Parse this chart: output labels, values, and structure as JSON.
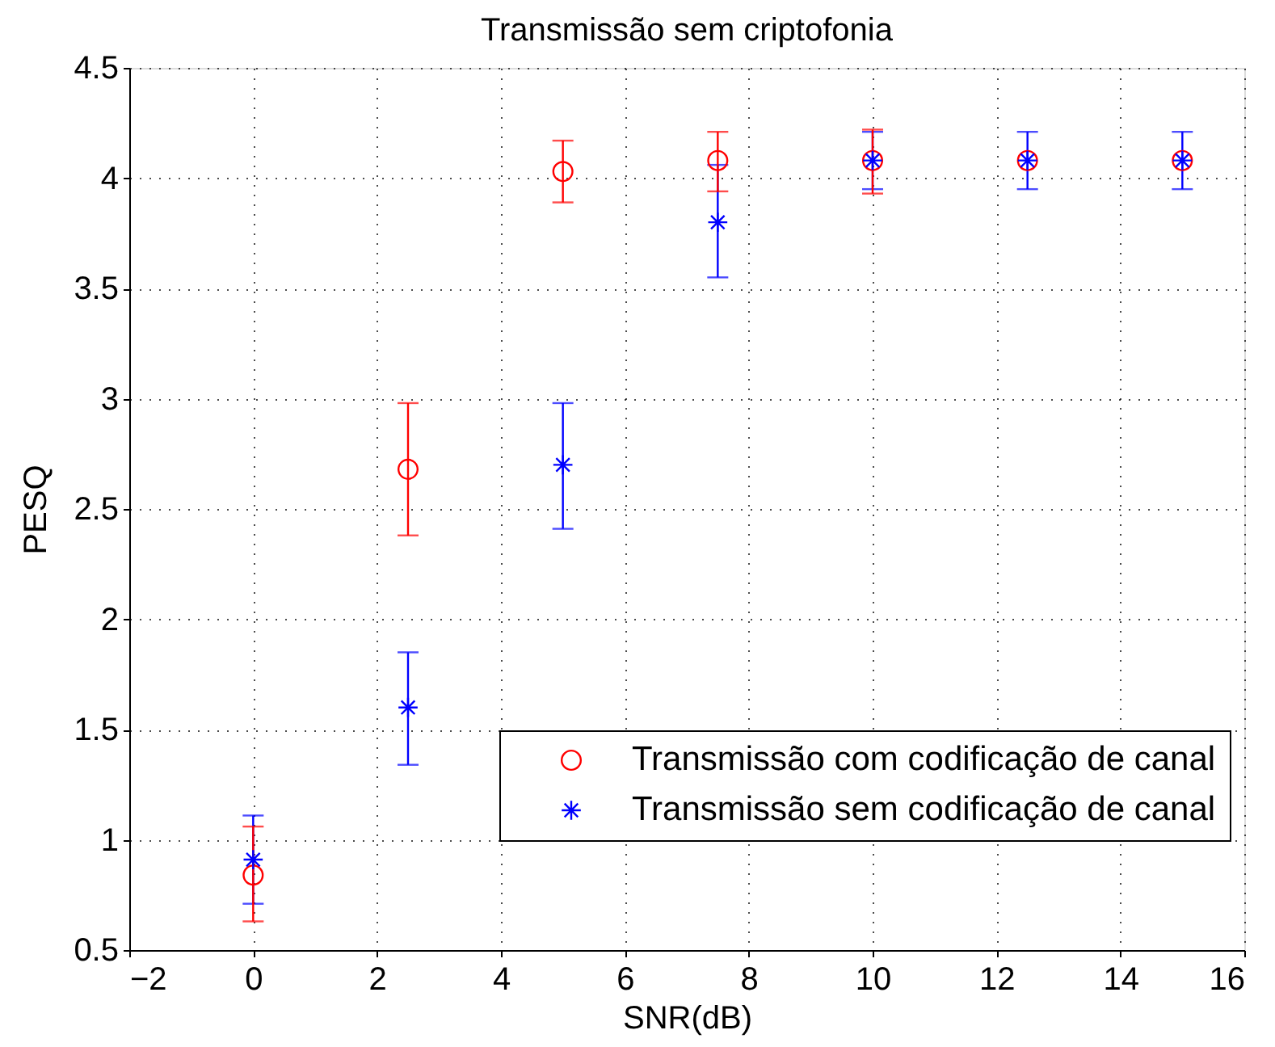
{
  "chart_data": {
    "type": "scatter",
    "title": "Transmissão sem criptofonia",
    "xlabel": "SNR(dB)",
    "ylabel": "PESQ",
    "x": [
      0,
      2.5,
      5,
      7.5,
      10,
      12.5,
      15
    ],
    "series": [
      {
        "name": "Transmissão com codificação de canal",
        "color": "#ff0000",
        "marker": "circle",
        "values": [
          0.84,
          2.68,
          4.03,
          4.08,
          4.08,
          4.08,
          4.08
        ],
        "errors": [
          [
            0.63,
            1.06
          ],
          [
            2.38,
            2.98
          ],
          [
            3.89,
            4.17
          ],
          [
            3.94,
            4.21
          ],
          [
            3.93,
            4.22
          ],
          null,
          null
        ]
      },
      {
        "name": "Transmissão sem codificação de canal",
        "color": "#0000ff",
        "marker": "cross",
        "values": [
          0.91,
          1.6,
          2.7,
          3.8,
          4.08,
          4.08,
          4.08
        ],
        "errors": [
          [
            0.71,
            1.11
          ],
          [
            1.34,
            1.85
          ],
          [
            2.41,
            2.98
          ],
          [
            3.55,
            4.06
          ],
          [
            3.95,
            4.21
          ],
          [
            3.95,
            4.21
          ],
          [
            3.95,
            4.21
          ]
        ]
      }
    ],
    "xlim": [
      -2,
      16
    ],
    "xticks": [
      -2,
      0,
      2,
      4,
      6,
      8,
      10,
      12,
      14,
      16
    ],
    "ylim": [
      0.5,
      4.5
    ],
    "yticks": [
      0.5,
      1,
      1.5,
      2,
      2.5,
      3,
      3.5,
      4,
      4.5
    ],
    "grid": true,
    "legend": "bottom right"
  }
}
